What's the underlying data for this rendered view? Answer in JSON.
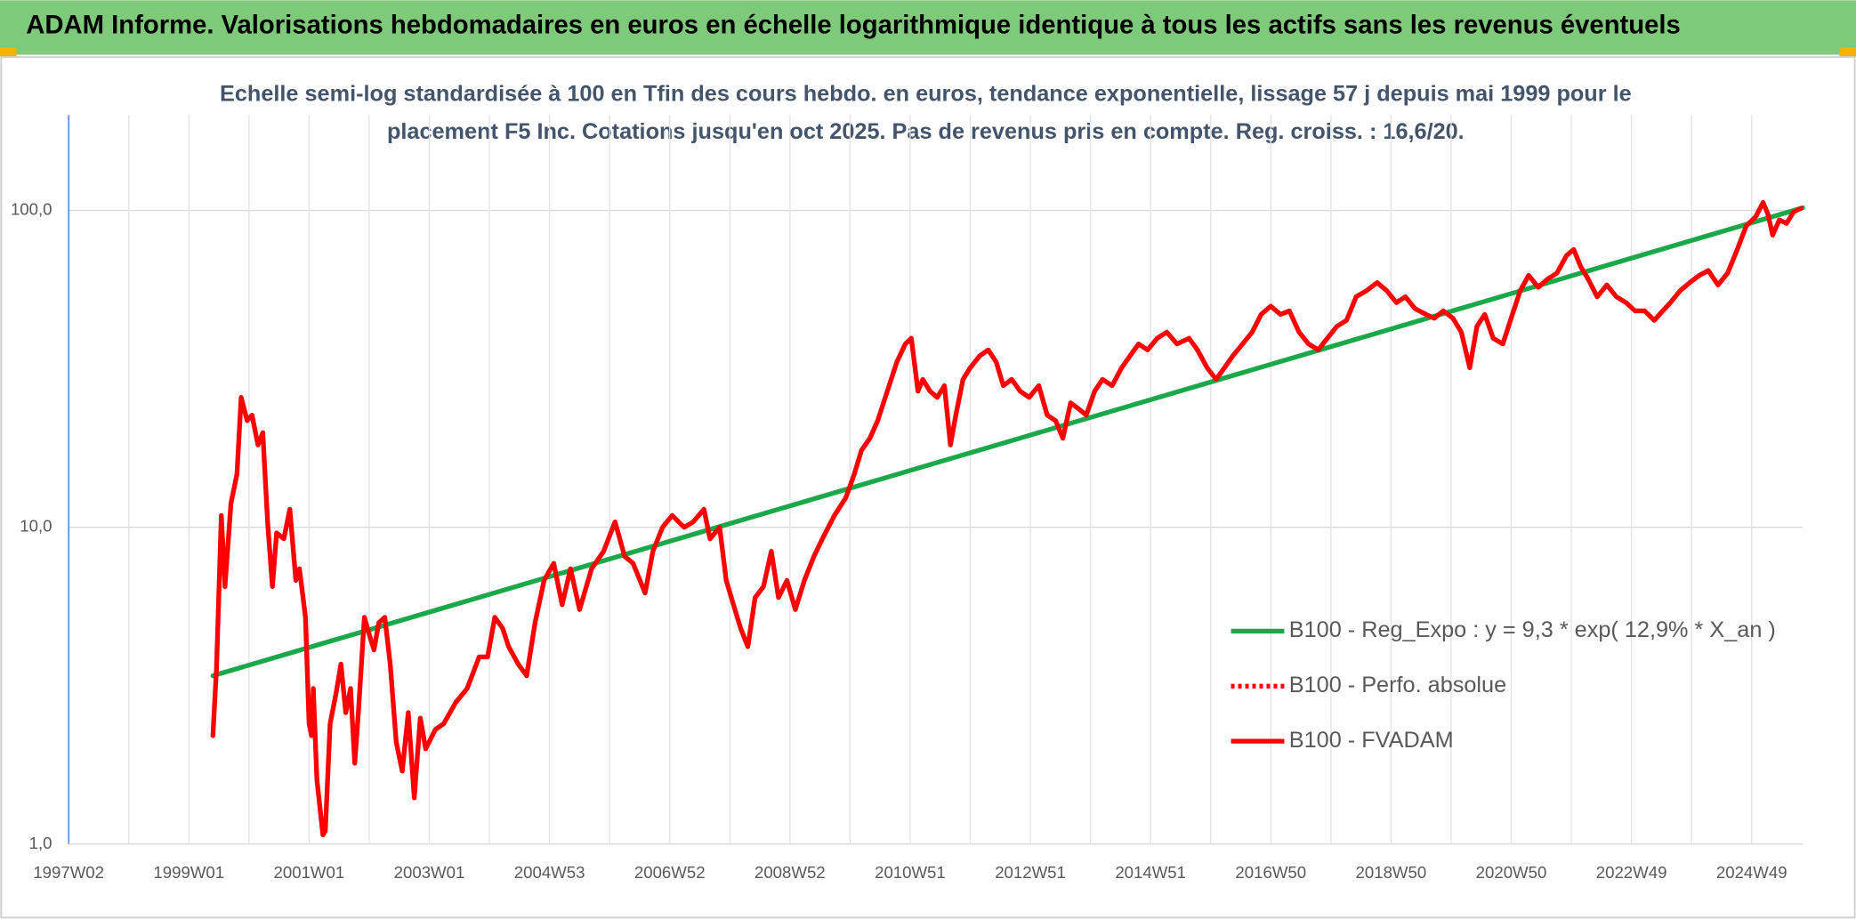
{
  "chart_data": {
    "type": "line",
    "title": "ADAM Informe. Valorisations hebdomadaires en euros en échelle logarithmique identique à tous les actifs sans les revenus éventuels",
    "subtitle": [
      "Echelle semi-log standardisée à 100 en Tfin des cours hebdo. en euros, tendance exponentielle, lissage 57 j depuis mai 1999 pour le",
      "placement F5 Inc. Cotations jusqu'en oct 2025. Pas de revenus pris en compte. Reg. croiss. : 16,6/20."
    ],
    "log_scale_y": true,
    "grid": true,
    "legend": "lower right",
    "xlim": [
      1997,
      2025.85
    ],
    "xticks": [
      {
        "value": 1997,
        "label": "1997W02"
      },
      {
        "value": 1999,
        "label": "1999W01"
      },
      {
        "value": 2001,
        "label": "2001W01"
      },
      {
        "value": 2003,
        "label": "2003W01"
      },
      {
        "value": 2005,
        "label": "2004W53"
      },
      {
        "value": 2007,
        "label": "2006W52"
      },
      {
        "value": 2009,
        "label": "2008W52"
      },
      {
        "value": 2011,
        "label": "2010W51"
      },
      {
        "value": 2013,
        "label": "2012W51"
      },
      {
        "value": 2015,
        "label": "2014W51"
      },
      {
        "value": 2017,
        "label": "2016W50"
      },
      {
        "value": 2019,
        "label": "2018W50"
      },
      {
        "value": 2021,
        "label": "2020W50"
      },
      {
        "value": 2023,
        "label": "2022W49"
      },
      {
        "value": 2025,
        "label": "2024W49"
      }
    ],
    "x_minor_ticks": [
      1998,
      2000,
      2002,
      2004,
      2006,
      2008,
      2010,
      2012,
      2014,
      2016,
      2018,
      2020,
      2022,
      2024
    ],
    "ylim": [
      1,
      200
    ],
    "yticks": [
      {
        "value": 1,
        "label": "1,0"
      },
      {
        "value": 10,
        "label": "10,0"
      },
      {
        "value": 100,
        "label": "100,0"
      }
    ],
    "series": [
      {
        "name": "B100 - Reg_Expo : y = 9,3 * exp( 12,9% *  X_an )",
        "color": "#1aa84a",
        "x": [
          1999.4,
          2025.85
        ],
        "values": [
          3.4,
          102
        ]
      },
      {
        "name": "B100 - Perfo. absolue",
        "color": "#ff0000",
        "dash": "dotted"
      },
      {
        "name": "B100 - FVADAM",
        "color": "#ff0000",
        "x": [
          1999.4,
          1999.46,
          1999.54,
          1999.6,
          1999.7,
          1999.8,
          1999.87,
          1999.97,
          2000.05,
          2000.15,
          2000.23,
          2000.31,
          2000.39,
          2000.46,
          2000.58,
          2000.68,
          2000.78,
          2000.84,
          2000.94,
          2001.0,
          2001.04,
          2001.07,
          2001.13,
          2001.23,
          2001.27,
          2001.35,
          2001.45,
          2001.53,
          2001.61,
          2001.69,
          2001.76,
          2001.82,
          2001.92,
          2002.0,
          2002.08,
          2002.16,
          2002.26,
          2002.35,
          2002.45,
          2002.55,
          2002.65,
          2002.75,
          2002.85,
          2002.94,
          2003.1,
          2003.24,
          2003.44,
          2003.63,
          2003.83,
          2003.97,
          2004.09,
          2004.22,
          2004.32,
          2004.48,
          2004.62,
          2004.76,
          2004.91,
          2005.07,
          2005.21,
          2005.35,
          2005.5,
          2005.7,
          2005.9,
          2006.09,
          2006.25,
          2006.39,
          2006.59,
          2006.72,
          2006.88,
          2007.04,
          2007.24,
          2007.39,
          2007.57,
          2007.67,
          2007.83,
          2007.94,
          2008.06,
          2008.18,
          2008.3,
          2008.42,
          2008.56,
          2008.69,
          2008.81,
          2008.95,
          2009.09,
          2009.24,
          2009.4,
          2009.54,
          2009.74,
          2009.93,
          2010.07,
          2010.19,
          2010.33,
          2010.46,
          2010.62,
          2010.78,
          2010.92,
          2011.02,
          2011.13,
          2011.21,
          2011.33,
          2011.45,
          2011.57,
          2011.67,
          2011.76,
          2011.88,
          2012.0,
          2012.16,
          2012.3,
          2012.43,
          2012.55,
          2012.69,
          2012.83,
          2012.98,
          2013.14,
          2013.28,
          2013.42,
          2013.54,
          2013.67,
          2013.81,
          2013.93,
          2014.07,
          2014.2,
          2014.36,
          2014.52,
          2014.66,
          2014.8,
          2014.95,
          2015.11,
          2015.27,
          2015.44,
          2015.64,
          2015.78,
          2015.94,
          2016.09,
          2016.23,
          2016.37,
          2016.53,
          2016.69,
          2016.84,
          2017.0,
          2017.16,
          2017.31,
          2017.47,
          2017.63,
          2017.79,
          2017.94,
          2018.1,
          2018.26,
          2018.42,
          2018.59,
          2018.77,
          2018.93,
          2019.09,
          2019.24,
          2019.4,
          2019.58,
          2019.72,
          2019.87,
          2020.03,
          2020.17,
          2020.31,
          2020.43,
          2020.56,
          2020.7,
          2020.86,
          2021.02,
          2021.15,
          2021.29,
          2021.45,
          2021.61,
          2021.76,
          2021.92,
          2022.04,
          2022.16,
          2022.28,
          2022.43,
          2022.59,
          2022.75,
          2022.91,
          2023.06,
          2023.22,
          2023.38,
          2023.52,
          2023.65,
          2023.81,
          2023.97,
          2024.13,
          2024.28,
          2024.44,
          2024.6,
          2024.76,
          2024.91,
          2025.07,
          2025.19,
          2025.27,
          2025.35,
          2025.46,
          2025.58,
          2025.7,
          2025.82
        ],
        "values": [
          2.2,
          3.6,
          10.9,
          6.5,
          11.9,
          14.7,
          25.7,
          21.7,
          22.6,
          18.2,
          19.9,
          10.4,
          6.5,
          9.6,
          9.2,
          11.4,
          6.8,
          7.4,
          5.2,
          2.4,
          2.2,
          3.1,
          1.6,
          1.07,
          1.1,
          2.4,
          3.0,
          3.7,
          2.6,
          3.1,
          1.8,
          2.6,
          5.2,
          4.6,
          4.1,
          5.0,
          5.2,
          3.7,
          2.1,
          1.7,
          2.6,
          1.4,
          2.5,
          2.0,
          2.3,
          2.4,
          2.8,
          3.1,
          3.9,
          3.9,
          5.2,
          4.8,
          4.2,
          3.7,
          3.4,
          5.0,
          6.8,
          7.7,
          5.7,
          7.4,
          5.5,
          7.4,
          8.4,
          10.4,
          8.1,
          7.7,
          6.2,
          8.4,
          10.0,
          10.9,
          10.0,
          10.4,
          11.4,
          9.2,
          10.0,
          6.8,
          5.7,
          4.8,
          4.2,
          6.0,
          6.5,
          8.4,
          6.0,
          6.8,
          5.5,
          6.8,
          8.1,
          9.2,
          10.9,
          12.4,
          14.7,
          17.5,
          19.1,
          21.7,
          26.9,
          33.3,
          37.9,
          39.5,
          26.9,
          29.3,
          26.9,
          25.7,
          28.0,
          18.2,
          22.6,
          29.3,
          31.9,
          34.8,
          36.3,
          33.3,
          28.0,
          29.3,
          26.9,
          25.7,
          28.0,
          22.6,
          21.7,
          19.1,
          24.7,
          23.6,
          22.6,
          26.9,
          29.3,
          28.0,
          31.9,
          34.8,
          37.9,
          36.3,
          39.5,
          41.3,
          37.9,
          39.5,
          36.3,
          31.9,
          29.3,
          31.9,
          34.8,
          37.9,
          41.3,
          47.0,
          49.9,
          47.0,
          48.2,
          41.3,
          37.9,
          36.3,
          39.5,
          43.1,
          45.0,
          53.4,
          55.8,
          59.2,
          55.8,
          51.2,
          53.4,
          49.0,
          47.0,
          45.7,
          48.2,
          45.7,
          41.3,
          31.9,
          43.1,
          47.0,
          39.5,
          37.9,
          47.0,
          55.8,
          62.4,
          57.2,
          60.8,
          63.4,
          72.1,
          75.3,
          66.2,
          60.8,
          53.4,
          58.2,
          53.4,
          51.2,
          48.2,
          48.2,
          45.0,
          48.2,
          51.2,
          55.8,
          59.2,
          62.4,
          64.6,
          58.2,
          63.4,
          75.3,
          89.4,
          95.7,
          106,
          97.5,
          83.6,
          93.4,
          91.0,
          99.1,
          101.6
        ]
      }
    ]
  }
}
